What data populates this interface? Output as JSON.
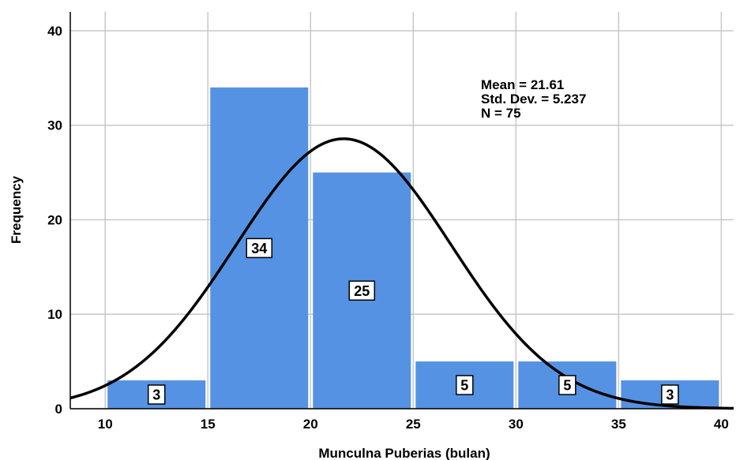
{
  "chart_data": {
    "type": "bar",
    "subtype": "histogram",
    "bins": [
      [
        10,
        15
      ],
      [
        15,
        20
      ],
      [
        20,
        25
      ],
      [
        25,
        30
      ],
      [
        30,
        35
      ],
      [
        35,
        40
      ]
    ],
    "values": [
      3,
      34,
      25,
      5,
      5,
      3
    ],
    "data_labels": [
      "3",
      "34",
      "25",
      "5",
      "5",
      "3"
    ],
    "xlabel": "Munculna Puberias (bulan)",
    "ylabel": "Frequency",
    "xlim": [
      8.3,
      40.6
    ],
    "ylim": [
      0,
      42
    ],
    "x_ticks": [
      "10",
      "15",
      "20",
      "25",
      "30",
      "35",
      "40"
    ],
    "y_ticks": [
      "0",
      "10",
      "20",
      "30",
      "40"
    ],
    "grid": true,
    "colors": {
      "bar": "#5592E3",
      "curve": "#000000",
      "grid": "#c8c8c8"
    },
    "stats": [
      "Mean = 21.61",
      "Std. Dev. = 5.237",
      "N = 75"
    ],
    "normal_curve": {
      "mean": 21.61,
      "sd": 5.237,
      "n": 75,
      "bin_width": 5
    }
  }
}
